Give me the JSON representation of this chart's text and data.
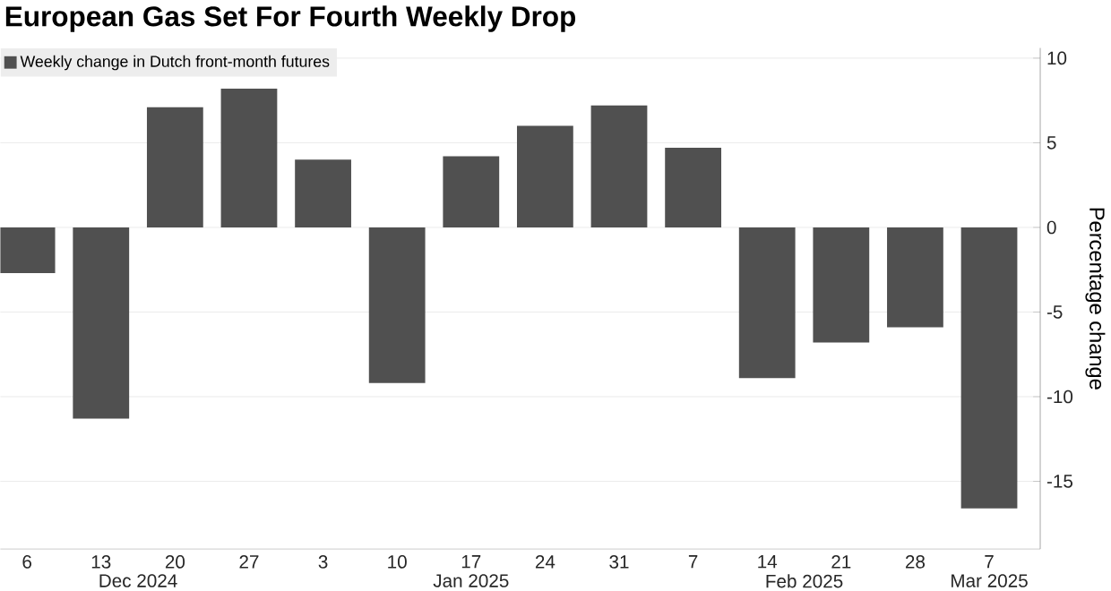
{
  "chart_data": {
    "type": "bar",
    "title": "European Gas Set For Fourth Weekly Drop",
    "ylabel": "Percentage change",
    "categories": [
      "6",
      "13",
      "20",
      "27",
      "3",
      "10",
      "17",
      "24",
      "31",
      "7",
      "14",
      "21",
      "28",
      "7"
    ],
    "series": [
      {
        "name": "Weekly change in Dutch front-month futures",
        "color": "#505050",
        "values": [
          -2.7,
          -11.3,
          7.1,
          8.2,
          4.0,
          -9.2,
          4.2,
          6.0,
          7.2,
          4.7,
          -8.9,
          -6.8,
          -5.9,
          -16.6
        ]
      }
    ],
    "ylim": [
      -19,
      10.6
    ],
    "yticks": [
      -15,
      -10,
      -5,
      0,
      5,
      10
    ],
    "grid": "y",
    "legend": "top left",
    "annotations": [
      "Dec 2024",
      "Jan 2025",
      "Feb 2025",
      "Mar 2025"
    ]
  }
}
